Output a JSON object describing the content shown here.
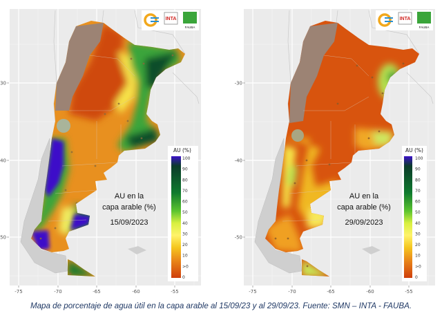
{
  "logos": {
    "inta": "INTA",
    "fauba": "FAUBA"
  },
  "panels": [
    {
      "id": "left",
      "title_line1": "AU en la",
      "title_line2": "capa arable (%)",
      "date": "15/09/2023",
      "y_ticks": [
        "-30",
        "-40",
        "-50"
      ],
      "x_ticks": [
        "-75",
        "-70",
        "-65",
        "-60",
        "-55"
      ]
    },
    {
      "id": "right",
      "title_line1": "AU en la",
      "title_line2": "capa arable (%)",
      "date": "29/09/2023",
      "y_ticks": [
        "-30",
        "-40",
        "-50"
      ],
      "x_ticks": [
        "-75",
        "-70",
        "-65",
        "-60",
        "-55"
      ]
    }
  ],
  "legend": {
    "title": "AU (%)",
    "ticks": [
      "100",
      "90",
      "80",
      "70",
      "60",
      "50",
      "40",
      "30",
      "20",
      "10",
      ">0",
      "0"
    ],
    "colors": {
      "c100": "#3b12c8",
      "c90": "#0b3b2a",
      "c70": "#0f7a2e",
      "c55": "#5cc42f",
      "c45": "#d8f040",
      "c30": "#fff36a",
      "c20": "#f5c61f",
      "c10": "#ea8a1a",
      "c0": "#cf3f0c"
    }
  },
  "caption": "Mapa de porcentaje de agua útil en la capa arable al 15/09/23 y al 29/09/23. Fuente: SMN – INTA - FAUBA."
}
